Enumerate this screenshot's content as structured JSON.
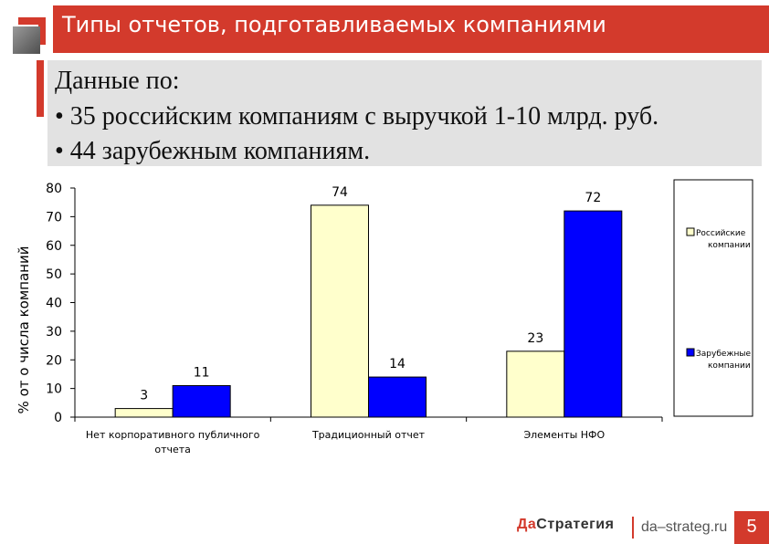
{
  "slide": {
    "title": "Типы отчетов, подготавливаемых компаниями",
    "info": {
      "heading": "Данные по:",
      "bullets": [
        "• 35 российским компаниям с выручкой 1-10 млрд. руб.",
        "• 44 зарубежным компаниям."
      ]
    },
    "colors": {
      "accent": "#d33a2c",
      "info_bg": "#e2e2e2"
    }
  },
  "chart_data": {
    "type": "bar",
    "title": "",
    "xlabel": "",
    "ylabel": "% от о числа компаний",
    "ylim": [
      0,
      80
    ],
    "yticks": [
      0,
      10,
      20,
      30,
      40,
      50,
      60,
      70,
      80
    ],
    "categories": [
      [
        "Нет корпоративного публичного",
        "отчета"
      ],
      [
        "Традиционный отчет"
      ],
      [
        "Элементы НФО"
      ]
    ],
    "series": [
      {
        "name": [
          "Российские",
          "компании"
        ],
        "values": [
          3,
          74,
          23
        ],
        "color": "#ffffcc"
      },
      {
        "name": [
          "Зарубежные",
          "компании"
        ],
        "values": [
          11,
          14,
          72
        ],
        "color": "#0000ff"
      }
    ],
    "data_labels": true,
    "grid": false,
    "legend": "right"
  },
  "footer": {
    "brand_accent": "Да",
    "brand_rest": "Стратегия",
    "site": "da–strateg.ru",
    "page": "5"
  }
}
